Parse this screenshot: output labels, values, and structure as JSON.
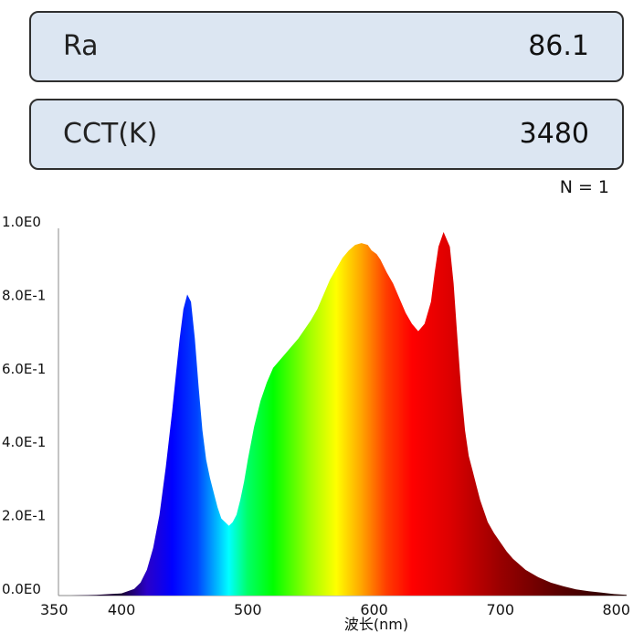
{
  "metrics": {
    "ra": {
      "label": "Ra",
      "value": "86.1"
    },
    "cct": {
      "label": "CCT(K)",
      "value": "3480"
    }
  },
  "sample_count": "N = 1",
  "chart_data": {
    "type": "area",
    "title": "",
    "xlabel": "波长(nm)",
    "ylabel": "",
    "xlim": [
      350,
      800
    ],
    "ylim": [
      0,
      1.0
    ],
    "x_ticks": [
      350,
      400,
      500,
      600,
      700,
      800
    ],
    "y_ticks": [
      {
        "value": 0.0,
        "label": "0.0E0"
      },
      {
        "value": 0.2,
        "label": "2.0E-1"
      },
      {
        "value": 0.4,
        "label": "4.0E-1"
      },
      {
        "value": 0.6,
        "label": "6.0E-1"
      },
      {
        "value": 0.8,
        "label": "8.0E-1"
      },
      {
        "value": 1.0,
        "label": "1.0E0"
      }
    ],
    "grid": false,
    "fill": "spectral",
    "series": [
      {
        "x": [
          360,
          380,
          400,
          410,
          415,
          420,
          425,
          430,
          435,
          440,
          443,
          446,
          449,
          452,
          455,
          458,
          461,
          464,
          467,
          470,
          473,
          476,
          479,
          482,
          485,
          488,
          491,
          494,
          497,
          500,
          505,
          510,
          515,
          520,
          525,
          530,
          540,
          550,
          555,
          560,
          565,
          570,
          575,
          580,
          585,
          590,
          595,
          598,
          602,
          605,
          610,
          615,
          620,
          625,
          630,
          635,
          640,
          645,
          648,
          651,
          655,
          660,
          663,
          666,
          669,
          672,
          675,
          678,
          681,
          684,
          690,
          695,
          700,
          705,
          710,
          720,
          730,
          740,
          750,
          760,
          770,
          780,
          790,
          800
        ],
        "y": [
          0.0,
          0.002,
          0.006,
          0.018,
          0.035,
          0.07,
          0.13,
          0.22,
          0.35,
          0.5,
          0.6,
          0.7,
          0.78,
          0.82,
          0.8,
          0.7,
          0.57,
          0.45,
          0.37,
          0.32,
          0.28,
          0.24,
          0.21,
          0.2,
          0.19,
          0.2,
          0.22,
          0.26,
          0.31,
          0.37,
          0.46,
          0.53,
          0.58,
          0.62,
          0.64,
          0.66,
          0.7,
          0.75,
          0.78,
          0.82,
          0.86,
          0.89,
          0.92,
          0.94,
          0.955,
          0.96,
          0.955,
          0.94,
          0.93,
          0.915,
          0.88,
          0.85,
          0.81,
          0.77,
          0.74,
          0.72,
          0.74,
          0.8,
          0.88,
          0.95,
          0.99,
          0.95,
          0.85,
          0.7,
          0.56,
          0.45,
          0.38,
          0.34,
          0.3,
          0.26,
          0.2,
          0.17,
          0.145,
          0.12,
          0.1,
          0.07,
          0.05,
          0.035,
          0.025,
          0.017,
          0.012,
          0.008,
          0.004,
          0.002
        ]
      }
    ],
    "color_stops": [
      {
        "nm": 400,
        "color": "#1a0033"
      },
      {
        "nm": 420,
        "color": "#2a00c8"
      },
      {
        "nm": 440,
        "color": "#0000ff"
      },
      {
        "nm": 460,
        "color": "#0044ff"
      },
      {
        "nm": 475,
        "color": "#00b4ff"
      },
      {
        "nm": 485,
        "color": "#00ffff"
      },
      {
        "nm": 500,
        "color": "#00ff66"
      },
      {
        "nm": 520,
        "color": "#00ff00"
      },
      {
        "nm": 550,
        "color": "#a6ff00"
      },
      {
        "nm": 570,
        "color": "#ffff00"
      },
      {
        "nm": 590,
        "color": "#ffa500"
      },
      {
        "nm": 610,
        "color": "#ff3c00"
      },
      {
        "nm": 630,
        "color": "#ff0000"
      },
      {
        "nm": 660,
        "color": "#dd0000"
      },
      {
        "nm": 700,
        "color": "#990000"
      },
      {
        "nm": 750,
        "color": "#550000"
      },
      {
        "nm": 800,
        "color": "#200000"
      }
    ]
  }
}
